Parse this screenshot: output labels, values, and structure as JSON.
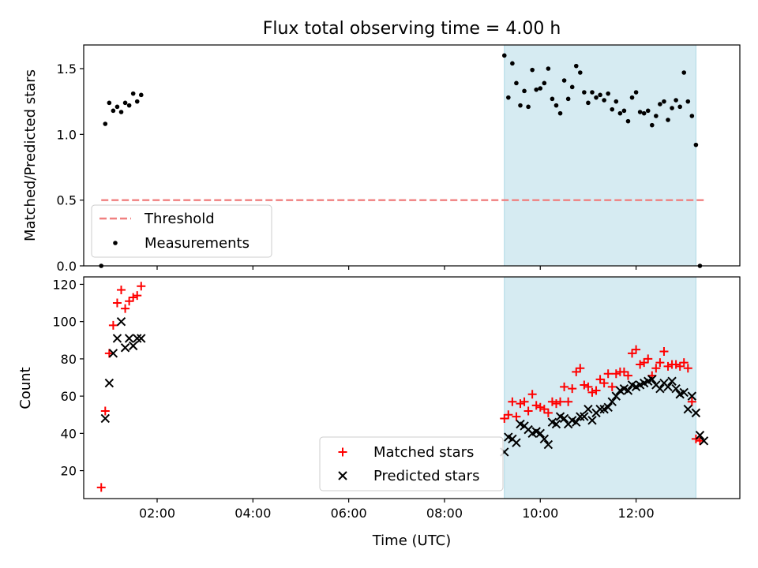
{
  "chart_data": [
    {
      "type": "scatter",
      "title": "Flux total observing time = 4.00 h",
      "ylabel": "Matched/Predicted stars",
      "xlabel": "",
      "xlim": [
        "00:28",
        "14:10"
      ],
      "ylim": [
        0,
        1.68
      ],
      "yticks": [
        0.0,
        0.5,
        1.0,
        1.5
      ],
      "ytick_labels": [
        "0.0",
        "0.5",
        "1.0",
        "1.5"
      ],
      "xticks": [
        "02:00",
        "04:00",
        "06:00",
        "08:00",
        "10:00",
        "12:00"
      ],
      "highlight_span": [
        "09:15",
        "13:15"
      ],
      "threshold": {
        "name": "Threshold",
        "value": 0.5,
        "x_range": [
          "00:50",
          "13:25"
        ],
        "color": "#f08080"
      },
      "series": [
        {
          "name": "Measurements",
          "color": "#000000",
          "marker": "dot",
          "points": [
            [
              "00:50",
              0.0
            ],
            [
              "00:55",
              1.08
            ],
            [
              "01:00",
              1.24
            ],
            [
              "01:05",
              1.18
            ],
            [
              "01:10",
              1.21
            ],
            [
              "01:15",
              1.17
            ],
            [
              "01:20",
              1.24
            ],
            [
              "01:25",
              1.22
            ],
            [
              "01:30",
              1.31
            ],
            [
              "01:35",
              1.25
            ],
            [
              "01:40",
              1.3
            ],
            [
              "09:15",
              1.6
            ],
            [
              "09:20",
              1.28
            ],
            [
              "09:25",
              1.54
            ],
            [
              "09:30",
              1.39
            ],
            [
              "09:35",
              1.22
            ],
            [
              "09:40",
              1.33
            ],
            [
              "09:45",
              1.21
            ],
            [
              "09:50",
              1.49
            ],
            [
              "09:55",
              1.34
            ],
            [
              "10:00",
              1.35
            ],
            [
              "10:05",
              1.39
            ],
            [
              "10:10",
              1.5
            ],
            [
              "10:15",
              1.27
            ],
            [
              "10:20",
              1.22
            ],
            [
              "10:25",
              1.16
            ],
            [
              "10:30",
              1.41
            ],
            [
              "10:35",
              1.27
            ],
            [
              "10:40",
              1.36
            ],
            [
              "10:45",
              1.52
            ],
            [
              "10:50",
              1.47
            ],
            [
              "10:55",
              1.32
            ],
            [
              "11:00",
              1.24
            ],
            [
              "11:05",
              1.32
            ],
            [
              "11:10",
              1.28
            ],
            [
              "11:15",
              1.3
            ],
            [
              "11:20",
              1.26
            ],
            [
              "11:25",
              1.31
            ],
            [
              "11:30",
              1.19
            ],
            [
              "11:35",
              1.25
            ],
            [
              "11:40",
              1.16
            ],
            [
              "11:45",
              1.18
            ],
            [
              "11:50",
              1.1
            ],
            [
              "11:55",
              1.28
            ],
            [
              "12:00",
              1.32
            ],
            [
              "12:05",
              1.17
            ],
            [
              "12:10",
              1.16
            ],
            [
              "12:15",
              1.18
            ],
            [
              "12:20",
              1.07
            ],
            [
              "12:25",
              1.14
            ],
            [
              "12:30",
              1.23
            ],
            [
              "12:35",
              1.25
            ],
            [
              "12:40",
              1.11
            ],
            [
              "12:45",
              1.2
            ],
            [
              "12:50",
              1.26
            ],
            [
              "12:55",
              1.21
            ],
            [
              "13:00",
              1.47
            ],
            [
              "13:05",
              1.25
            ],
            [
              "13:10",
              1.14
            ],
            [
              "13:15",
              0.92
            ],
            [
              "13:20",
              0.0
            ]
          ]
        }
      ],
      "legend_placement": "lower-left"
    },
    {
      "type": "scatter",
      "title": "",
      "ylabel": "Count",
      "xlabel": "Time (UTC)",
      "xlim": [
        "00:28",
        "14:10"
      ],
      "ylim": [
        5,
        124
      ],
      "yticks": [
        20,
        40,
        60,
        80,
        100,
        120
      ],
      "ytick_labels": [
        "20",
        "40",
        "60",
        "80",
        "100",
        "120"
      ],
      "xticks": [
        "02:00",
        "04:00",
        "06:00",
        "08:00",
        "10:00",
        "12:00"
      ],
      "highlight_span": [
        "09:15",
        "13:15"
      ],
      "legend_placement": "lower-center",
      "series": [
        {
          "name": "Matched stars",
          "color": "#ff0000",
          "marker": "plus",
          "points": [
            [
              "00:50",
              11
            ],
            [
              "00:55",
              52
            ],
            [
              "01:00",
              83
            ],
            [
              "01:05",
              98
            ],
            [
              "01:10",
              110
            ],
            [
              "01:15",
              117
            ],
            [
              "01:20",
              107
            ],
            [
              "01:25",
              111
            ],
            [
              "01:30",
              113
            ],
            [
              "01:35",
              114
            ],
            [
              "01:40",
              119
            ],
            [
              "09:15",
              48
            ],
            [
              "09:20",
              50
            ],
            [
              "09:25",
              57
            ],
            [
              "09:30",
              49
            ],
            [
              "09:35",
              56
            ],
            [
              "09:40",
              57
            ],
            [
              "09:45",
              52
            ],
            [
              "09:50",
              61
            ],
            [
              "09:55",
              55
            ],
            [
              "10:00",
              54
            ],
            [
              "10:05",
              53
            ],
            [
              "10:10",
              51
            ],
            [
              "10:15",
              57
            ],
            [
              "10:20",
              56
            ],
            [
              "10:25",
              57
            ],
            [
              "10:30",
              65
            ],
            [
              "10:35",
              57
            ],
            [
              "10:40",
              64
            ],
            [
              "10:45",
              73
            ],
            [
              "10:50",
              75
            ],
            [
              "10:55",
              66
            ],
            [
              "11:00",
              65
            ],
            [
              "11:05",
              62
            ],
            [
              "11:10",
              63
            ],
            [
              "11:15",
              69
            ],
            [
              "11:20",
              67
            ],
            [
              "11:25",
              72
            ],
            [
              "11:30",
              65
            ],
            [
              "11:35",
              72
            ],
            [
              "11:40",
              73
            ],
            [
              "11:45",
              73
            ],
            [
              "11:50",
              71
            ],
            [
              "11:55",
              83
            ],
            [
              "12:00",
              85
            ],
            [
              "12:05",
              77
            ],
            [
              "12:10",
              78
            ],
            [
              "12:15",
              80
            ],
            [
              "12:20",
              71
            ],
            [
              "12:25",
              75
            ],
            [
              "12:30",
              78
            ],
            [
              "12:35",
              84
            ],
            [
              "12:40",
              76
            ],
            [
              "12:45",
              77
            ],
            [
              "12:50",
              77
            ],
            [
              "12:55",
              76
            ],
            [
              "13:00",
              78
            ],
            [
              "13:05",
              75
            ],
            [
              "13:10",
              57
            ],
            [
              "13:15",
              37
            ],
            [
              "13:20",
              36
            ]
          ]
        },
        {
          "name": "Predicted stars",
          "color": "#000000",
          "marker": "x",
          "points": [
            [
              "00:55",
              48
            ],
            [
              "01:00",
              67
            ],
            [
              "01:05",
              83
            ],
            [
              "01:10",
              91
            ],
            [
              "01:15",
              100
            ],
            [
              "01:20",
              86
            ],
            [
              "01:25",
              91
            ],
            [
              "01:30",
              87
            ],
            [
              "01:35",
              91
            ],
            [
              "01:40",
              91
            ],
            [
              "09:15",
              30
            ],
            [
              "09:20",
              38
            ],
            [
              "09:25",
              37
            ],
            [
              "09:30",
              35
            ],
            [
              "09:35",
              45
            ],
            [
              "09:40",
              44
            ],
            [
              "09:45",
              42
            ],
            [
              "09:50",
              40
            ],
            [
              "09:55",
              41
            ],
            [
              "10:00",
              40
            ],
            [
              "10:05",
              37
            ],
            [
              "10:10",
              34
            ],
            [
              "10:15",
              46
            ],
            [
              "10:20",
              45
            ],
            [
              "10:25",
              49
            ],
            [
              "10:30",
              48
            ],
            [
              "10:35",
              45
            ],
            [
              "10:40",
              47
            ],
            [
              "10:45",
              46
            ],
            [
              "10:50",
              49
            ],
            [
              "10:55",
              49
            ],
            [
              "11:00",
              53
            ],
            [
              "11:05",
              47
            ],
            [
              "11:10",
              51
            ],
            [
              "11:15",
              53
            ],
            [
              "11:20",
              53
            ],
            [
              "11:25",
              54
            ],
            [
              "11:30",
              57
            ],
            [
              "11:35",
              60
            ],
            [
              "11:40",
              63
            ],
            [
              "11:45",
              64
            ],
            [
              "11:50",
              63
            ],
            [
              "11:55",
              66
            ],
            [
              "12:00",
              65
            ],
            [
              "12:05",
              66
            ],
            [
              "12:10",
              67
            ],
            [
              "12:15",
              68
            ],
            [
              "12:20",
              69
            ],
            [
              "12:25",
              66
            ],
            [
              "12:30",
              64
            ],
            [
              "12:35",
              67
            ],
            [
              "12:40",
              65
            ],
            [
              "12:45",
              68
            ],
            [
              "12:50",
              64
            ],
            [
              "12:55",
              61
            ],
            [
              "13:00",
              62
            ],
            [
              "13:05",
              53
            ],
            [
              "13:10",
              60
            ],
            [
              "13:15",
              51
            ],
            [
              "13:20",
              39
            ],
            [
              "13:25",
              36
            ]
          ]
        }
      ]
    }
  ]
}
